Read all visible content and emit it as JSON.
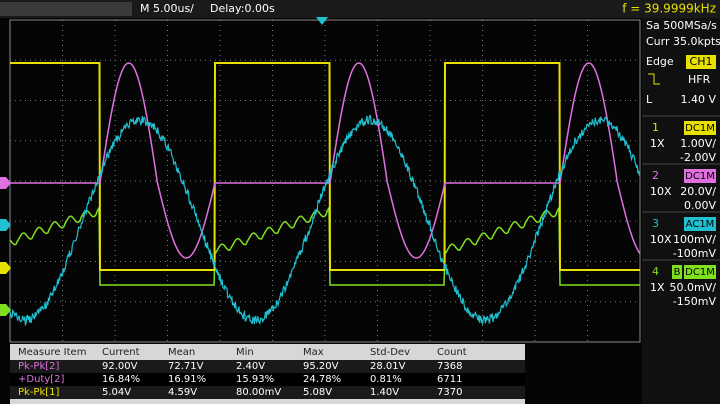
{
  "top": {
    "timebase": "M 5.00us/",
    "delay": "Delay:0.00s",
    "frequency": "f = 39.9999kHz"
  },
  "acquisition": {
    "sample_rate": "Sa 500MSa/s",
    "memory": "Curr 35.0kpts"
  },
  "trigger": {
    "type": "Edge",
    "source": "CH1",
    "coupling": "HFR",
    "level_label": "L",
    "level": "1.40 V"
  },
  "channels": [
    {
      "number": "1",
      "coupling": "DC1M",
      "probe": "1X",
      "scale": "1.00V/",
      "offset": "-2.00V",
      "color": "#e8e000"
    },
    {
      "number": "2",
      "coupling": "DC1M",
      "probe": "10X",
      "scale": "20.0V/",
      "offset": "0.00V",
      "color": "#e070e0"
    },
    {
      "number": "3",
      "coupling": "AC1M",
      "probe": "10X",
      "scale": "100mV/",
      "offset": "-100mV",
      "color": "#20c0d0"
    },
    {
      "number": "4",
      "bw_limit": "B",
      "coupling": "DC1M",
      "probe": "1X",
      "scale": "50.0mV/",
      "offset": "-150mV",
      "color": "#80e020"
    }
  ],
  "measure": {
    "header": [
      "Measure Item",
      "Current",
      "Mean",
      "Min",
      "Max",
      "Std-Dev",
      "Count"
    ],
    "rows": [
      {
        "color": "#e070e0",
        "cells": [
          "Pk-Pk[2]",
          "92.00V",
          "72.71V",
          "2.40V",
          "95.20V",
          "28.01V",
          "7368"
        ]
      },
      {
        "color": "#e070e0",
        "cells": [
          "+Duty[2]",
          "16.84%",
          "16.91%",
          "15.93%",
          "24.78%",
          "0.81%",
          "6711"
        ]
      },
      {
        "color": "#e8e000",
        "cells": [
          "Pk-Pk[1]",
          "5.04V",
          "4.59V",
          "80.00mV",
          "5.08V",
          "1.40V",
          "7370"
        ]
      }
    ]
  }
}
